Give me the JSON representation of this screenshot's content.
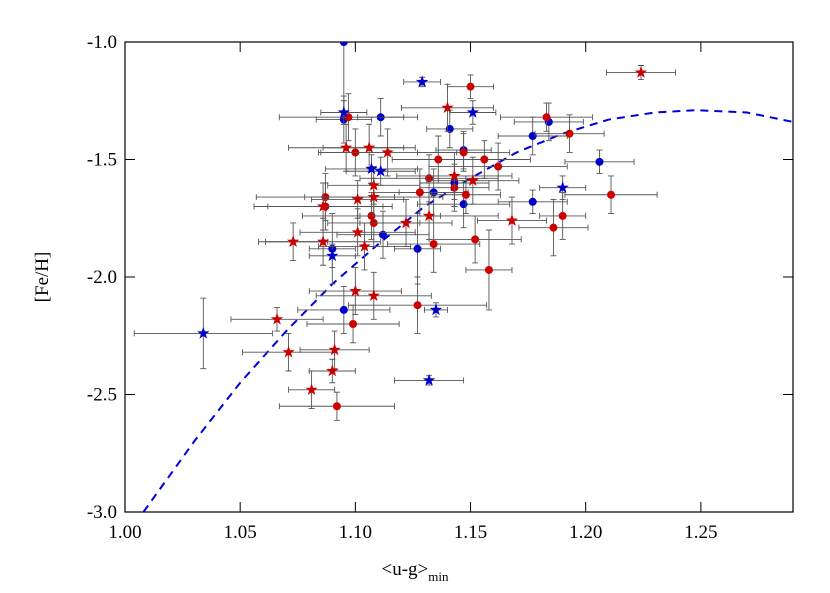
{
  "chart_data": {
    "type": "scatter",
    "xlabel": "<u-g>",
    "xlabel_sub": "min",
    "ylabel": "[Fe/H]",
    "xlim": [
      1.0,
      1.29
    ],
    "ylim": [
      -3.0,
      -1.0
    ],
    "xticks": [
      {
        "value": 1.0,
        "label": "1.00"
      },
      {
        "value": 1.05,
        "label": "1.05"
      },
      {
        "value": 1.1,
        "label": "1.10"
      },
      {
        "value": 1.15,
        "label": "1.15"
      },
      {
        "value": 1.2,
        "label": "1.20"
      },
      {
        "value": 1.25,
        "label": "1.25"
      }
    ],
    "yticks": [
      {
        "value": -3.0,
        "label": "-3.0"
      },
      {
        "value": -2.5,
        "label": "-2.5"
      },
      {
        "value": -2.0,
        "label": "-2.0"
      },
      {
        "value": -1.5,
        "label": "-1.5"
      },
      {
        "value": -1.0,
        "label": "-1.0"
      }
    ],
    "series": [
      {
        "color": "#0000cc",
        "marker": "circle",
        "x": [
          1.095,
          1.095,
          1.111,
          1.141,
          1.147,
          1.143,
          1.147,
          1.134,
          1.112,
          1.09,
          1.127,
          1.095,
          1.177,
          1.177,
          1.206,
          1.184
        ],
        "values": [
          -1.0,
          -1.33,
          -1.32,
          -1.37,
          -1.46,
          -1.6,
          -1.69,
          -1.64,
          -1.82,
          -1.88,
          -1.88,
          -2.14,
          -1.4,
          -1.68,
          -1.51,
          -1.34
        ],
        "xerr": [
          0,
          0.012,
          0.01,
          0.01,
          0.012,
          0.015,
          0.02,
          0.015,
          0.02,
          0.01,
          0.01,
          0.02,
          0.015,
          0.015,
          0.015,
          0.015
        ],
        "yerr": [
          0.3,
          0.1,
          0.08,
          0.08,
          0.08,
          0.1,
          0.1,
          0.1,
          0.1,
          0.15,
          0.15,
          0.1,
          0.08,
          0.05,
          0.05,
          0.08
        ]
      },
      {
        "color": "#cc0000",
        "marker": "circle",
        "x": [
          1.097,
          1.1,
          1.15,
          1.136,
          1.147,
          1.156,
          1.162,
          1.183,
          1.193,
          1.132,
          1.128,
          1.143,
          1.148,
          1.087,
          1.087,
          1.107,
          1.108,
          1.134,
          1.152,
          1.19,
          1.186,
          1.211,
          1.158,
          1.127,
          1.099,
          1.092
        ],
        "values": [
          -1.32,
          -1.47,
          -1.19,
          -1.5,
          -1.47,
          -1.5,
          -1.53,
          -1.32,
          -1.39,
          -1.58,
          -1.64,
          -1.62,
          -1.65,
          -1.66,
          -1.7,
          -1.74,
          -1.77,
          -1.86,
          -1.84,
          -1.74,
          -1.79,
          -1.65,
          -1.97,
          -2.12,
          -2.2,
          -2.55
        ],
        "xerr": [
          0.03,
          0.015,
          0.01,
          0.02,
          0.02,
          0.02,
          0.03,
          0.02,
          0.015,
          0.03,
          0.02,
          0.015,
          0.015,
          0.03,
          0.025,
          0.03,
          0.02,
          0.02,
          0.02,
          0.01,
          0.015,
          0.02,
          0.01,
          0.03,
          0.02,
          0.025
        ],
        "yerr": [
          0.1,
          0.1,
          0.05,
          0.1,
          0.08,
          0.08,
          0.1,
          0.06,
          0.08,
          0.1,
          0.1,
          0.1,
          0.08,
          0.1,
          0.1,
          0.1,
          0.1,
          0.12,
          0.1,
          0.1,
          0.12,
          0.08,
          0.17,
          0.12,
          0.08,
          0.06
        ]
      },
      {
        "color": "#cc0000",
        "marker": "star",
        "x": [
          1.224,
          1.14,
          1.096,
          1.106,
          1.114,
          1.108,
          1.108,
          1.101,
          1.086,
          1.086,
          1.073,
          1.101,
          1.104,
          1.122,
          1.132,
          1.143,
          1.151,
          1.168,
          1.1,
          1.108,
          1.066,
          1.071,
          1.091,
          1.09,
          1.081
        ],
        "values": [
          -1.13,
          -1.28,
          -1.45,
          -1.45,
          -1.47,
          -1.61,
          -1.66,
          -1.67,
          -1.7,
          -1.85,
          -1.85,
          -1.81,
          -1.87,
          -1.77,
          -1.74,
          -1.57,
          -1.59,
          -1.76,
          -2.06,
          -2.08,
          -2.18,
          -2.32,
          -2.31,
          -2.4,
          -2.48
        ],
        "xerr": [
          0.015,
          0.02,
          0.025,
          0.02,
          0.03,
          0.02,
          0.03,
          0.02,
          0.03,
          0.025,
          0.015,
          0.025,
          0.02,
          0.02,
          0.03,
          0.025,
          0.02,
          0.015,
          0.02,
          0.025,
          0.02,
          0.02,
          0.015,
          0.01,
          0.01
        ],
        "yerr": [
          0.03,
          0.1,
          0.1,
          0.1,
          0.1,
          0.08,
          0.08,
          0.08,
          0.1,
          0.1,
          0.08,
          0.1,
          0.1,
          0.1,
          0.1,
          0.1,
          0.1,
          0.1,
          0.1,
          0.1,
          0.05,
          0.08,
          0.08,
          0.05,
          0.08
        ]
      },
      {
        "color": "#0000cc",
        "marker": "star",
        "x": [
          1.095,
          1.129,
          1.151,
          1.107,
          1.111,
          1.09,
          1.034,
          1.135,
          1.132,
          1.19
        ],
        "values": [
          -1.3,
          -1.17,
          -1.3,
          -1.54,
          -1.55,
          -1.91,
          -2.24,
          -2.14,
          -2.44,
          -1.62
        ],
        "xerr": [
          0.01,
          0.008,
          0.01,
          0.02,
          0.015,
          0.01,
          0.03,
          0.005,
          0.015,
          0.01
        ],
        "yerr": [
          0.05,
          0.02,
          0.05,
          0.06,
          0.06,
          0.05,
          0.15,
          0.03,
          0.02,
          0.05
        ]
      }
    ],
    "fit": {
      "type": "line",
      "color": "#0000dd",
      "dashed": true,
      "x": [
        1.008,
        1.03,
        1.05,
        1.07,
        1.09,
        1.11,
        1.13,
        1.15,
        1.17,
        1.19,
        1.21,
        1.23,
        1.248,
        1.27,
        1.29
      ],
      "values": [
        -3.0,
        -2.7,
        -2.45,
        -2.23,
        -2.03,
        -1.86,
        -1.7,
        -1.58,
        -1.47,
        -1.39,
        -1.33,
        -1.3,
        -1.29,
        -1.3,
        -1.34
      ]
    }
  }
}
